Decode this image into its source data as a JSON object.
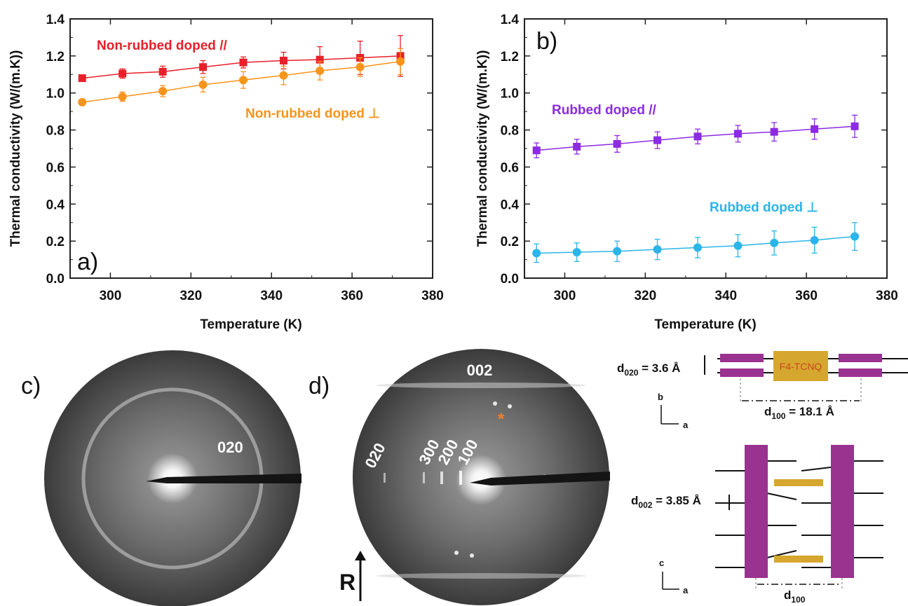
{
  "chart_data": [
    {
      "type": "scatter",
      "panel_label": "a)",
      "xlabel": "Temperature (K)",
      "ylabel": "Thermal conductivity (W/(m.K))",
      "xlim": [
        290,
        380
      ],
      "ylim": [
        0.0,
        1.4
      ],
      "x_ticks": [
        "300",
        "320",
        "340",
        "360",
        "380"
      ],
      "y_ticks": [
        "0.0",
        "0.2",
        "0.4",
        "0.6",
        "0.8",
        "1.0",
        "1.2",
        "1.4"
      ],
      "grid": false,
      "series": [
        {
          "name": "Non-rubbed doped //",
          "color": "#e8202a",
          "marker": "square",
          "x": [
            293,
            303,
            313,
            323,
            333,
            343,
            352,
            362,
            372
          ],
          "values": [
            1.08,
            1.105,
            1.115,
            1.14,
            1.165,
            1.175,
            1.18,
            1.19,
            1.2
          ],
          "error": [
            0.015,
            0.025,
            0.03,
            0.035,
            0.03,
            0.045,
            0.07,
            0.09,
            0.11
          ]
        },
        {
          "name": "Non-rubbed doped ⊥",
          "color": "#f7941d",
          "marker": "circle",
          "x": [
            293,
            303,
            313,
            323,
            333,
            343,
            352,
            362,
            372
          ],
          "values": [
            0.95,
            0.98,
            1.01,
            1.045,
            1.07,
            1.095,
            1.12,
            1.14,
            1.17
          ],
          "error": [
            0.015,
            0.025,
            0.03,
            0.04,
            0.045,
            0.05,
            0.05,
            0.05,
            0.07
          ]
        }
      ]
    },
    {
      "type": "scatter",
      "panel_label": "b)",
      "xlabel": "Temperature (K)",
      "ylabel": "Thermal conductivity (W/(m.K))",
      "xlim": [
        290,
        380
      ],
      "ylim": [
        0.0,
        1.4
      ],
      "x_ticks": [
        "300",
        "320",
        "340",
        "360",
        "380"
      ],
      "y_ticks": [
        "0.0",
        "0.2",
        "0.4",
        "0.6",
        "0.8",
        "1.0",
        "1.2",
        "1.4"
      ],
      "grid": false,
      "series": [
        {
          "name": "Rubbed doped //",
          "color": "#8b2be2",
          "marker": "square",
          "x": [
            293,
            303,
            313,
            323,
            333,
            343,
            352,
            362,
            372
          ],
          "values": [
            0.69,
            0.71,
            0.725,
            0.745,
            0.765,
            0.78,
            0.79,
            0.805,
            0.82
          ],
          "error": [
            0.04,
            0.04,
            0.045,
            0.045,
            0.04,
            0.045,
            0.05,
            0.055,
            0.06
          ]
        },
        {
          "name": "Rubbed doped ⊥",
          "color": "#2bb5ea",
          "marker": "circle",
          "x": [
            293,
            303,
            313,
            323,
            333,
            343,
            352,
            362,
            372
          ],
          "values": [
            0.135,
            0.14,
            0.145,
            0.155,
            0.165,
            0.175,
            0.19,
            0.205,
            0.225
          ],
          "error": [
            0.05,
            0.05,
            0.055,
            0.055,
            0.055,
            0.06,
            0.065,
            0.07,
            0.075
          ]
        }
      ]
    }
  ],
  "diffraction": {
    "c": {
      "label": "c)",
      "ring_label": "020"
    },
    "d": {
      "label": "d)",
      "top_label": "002",
      "labels": [
        "020",
        "300",
        "200",
        "100"
      ],
      "star": "*",
      "arrow_label": "R"
    }
  },
  "schematic": {
    "top": {
      "d020_main": "d",
      "d020_sub": "020",
      "d020_value": " = 3.6 Å",
      "dopant": "F4-TCNQ",
      "d100_main": "d",
      "d100_sub": "100",
      "d100_value": " = 18.1 Å",
      "axis_up": "b",
      "axis_right": "a"
    },
    "bottom": {
      "d002_main": "d",
      "d002_sub": "002",
      "d002_value": " = 3.85 Å",
      "d100_main": "d",
      "d100_sub": "100",
      "axis_up": "c",
      "axis_right": "a"
    },
    "colors": {
      "polymer": "#9a3290",
      "dopant": "#d6a72e",
      "dopant_text": "#c84a1e"
    }
  }
}
